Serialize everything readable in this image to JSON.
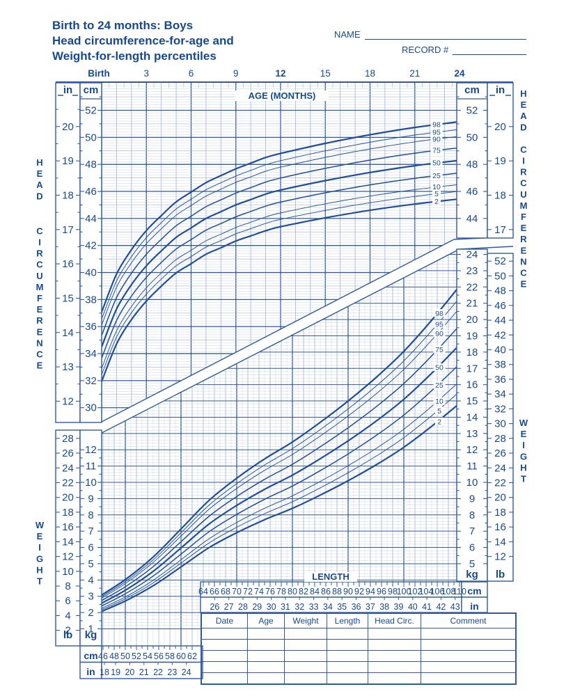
{
  "colors": {
    "ink": "#17498f",
    "curve": "#1f4e96",
    "grid_fine": "#c8d1e3",
    "grid_mid": "#9db0d0",
    "grid_mid2": "#a9b8d4",
    "grid_major": "#2f5a9e"
  },
  "header": {
    "title_lines": [
      "Birth to 24 months: Boys",
      "Head circumference-for-age and",
      "Weight-for-length percentiles"
    ],
    "name_label": "NAME",
    "record_label": "RECORD #"
  },
  "age_axis": {
    "title": "AGE (MONTHS)",
    "ticks": [
      {
        "label": "Birth",
        "month": 0,
        "bold": true
      },
      {
        "label": "3",
        "month": 3,
        "bold": false
      },
      {
        "label": "6",
        "month": 6,
        "bold": false
      },
      {
        "label": "9",
        "month": 9,
        "bold": false
      },
      {
        "label": "12",
        "month": 12,
        "bold": true
      },
      {
        "label": "15",
        "month": 15,
        "bold": false
      },
      {
        "label": "18",
        "month": 18,
        "bold": false
      },
      {
        "label": "21",
        "month": 21,
        "bold": false
      },
      {
        "label": "24",
        "month": 24,
        "bold": true
      }
    ]
  },
  "side_labels": {
    "left_head": "HEAD CIRCUMFERENCE",
    "right_head": "HEAD CIRCUMFERENCE",
    "left_weight": "WEIGHT",
    "right_weight": "WEIGHT"
  },
  "units": {
    "cm": "cm",
    "in": "in",
    "kg": "kg",
    "lb": "lb"
  },
  "hc_axis": {
    "left_cm_labels": [
      52,
      50,
      48,
      46,
      44,
      42,
      40,
      38,
      36,
      34,
      32,
      30
    ],
    "left_in_labels": [
      20,
      19,
      18,
      17,
      16,
      15,
      14,
      13,
      12
    ],
    "right_cm_labels": [
      52,
      50,
      48,
      46,
      44
    ],
    "right_in_labels": [
      20,
      19,
      18,
      17
    ]
  },
  "weight_axis": {
    "left_kg_labels": [
      12,
      11,
      10,
      9,
      8,
      7,
      6,
      5,
      4,
      3,
      2,
      1
    ],
    "left_lb_labels": [
      28,
      26,
      24,
      22,
      20,
      18,
      16,
      14,
      12,
      10,
      8,
      6,
      4,
      2
    ],
    "right_kg_labels": [
      24,
      23,
      22,
      21,
      20,
      19,
      18,
      17,
      16,
      15,
      14,
      13,
      12,
      11,
      10,
      9,
      8,
      7,
      6,
      5
    ],
    "right_lb_labels": [
      52,
      50,
      48,
      46,
      44,
      42,
      40,
      38,
      36,
      34,
      32,
      30,
      28,
      26,
      24,
      22,
      20,
      18,
      16,
      14,
      12
    ]
  },
  "length_axis": {
    "label": "LENGTH",
    "main_cm": [
      64,
      66,
      68,
      70,
      72,
      74,
      76,
      78,
      80,
      82,
      84,
      86,
      88,
      90,
      92,
      94,
      96,
      98,
      100,
      102,
      104,
      106,
      108,
      110
    ],
    "main_in": [
      26,
      27,
      28,
      29,
      30,
      31,
      32,
      33,
      34,
      35,
      36,
      37,
      38,
      39,
      40,
      41,
      42,
      43
    ],
    "lower_cm": [
      46,
      48,
      50,
      52,
      54,
      56,
      58,
      60,
      62
    ],
    "lower_in": [
      18,
      19,
      20,
      21,
      22,
      23,
      24
    ]
  },
  "percentile_curve_labels": [
    "98",
    "95",
    "90",
    "75",
    "50",
    "25",
    "10",
    "5",
    "2"
  ],
  "table": {
    "headers": [
      "Date",
      "Age",
      "Weight",
      "Length",
      "Head Circ.",
      "Comment"
    ],
    "rows": [
      [
        "",
        "",
        "",
        "",
        "",
        ""
      ],
      [
        "",
        "",
        "",
        "",
        "",
        ""
      ],
      [
        "",
        "",
        "",
        "",
        "",
        ""
      ],
      [
        "",
        "",
        "",
        "",
        "",
        ""
      ],
      [
        "",
        "",
        "",
        "",
        "",
        ""
      ]
    ]
  },
  "chart_data": [
    {
      "type": "line",
      "title": "Head circumference-for-age percentiles, boys, birth to 24 months",
      "xlabel": "AGE (MONTHS)",
      "ylabel": "HEAD CIRCUMFERENCE (cm)",
      "xlim": [
        0,
        24
      ],
      "ylim": [
        29.5,
        54
      ],
      "grid": true,
      "percentiles": [
        2,
        5,
        10,
        25,
        50,
        75,
        90,
        95,
        98
      ],
      "z_scores": {
        "2": -2.054,
        "5": -1.645,
        "10": -1.282,
        "25": -0.674,
        "50": 0,
        "75": 0.674,
        "90": 1.282,
        "95": 1.645,
        "98": 2.054
      },
      "x_months": [
        0,
        1,
        2,
        3,
        4,
        5,
        6,
        7,
        8,
        9,
        10,
        11,
        12,
        15,
        18,
        21,
        24
      ],
      "median_cm": [
        34.5,
        37.3,
        39.1,
        40.5,
        41.6,
        42.6,
        43.3,
        44.0,
        44.5,
        45.0,
        45.4,
        45.8,
        46.1,
        46.8,
        47.4,
        47.9,
        48.3
      ],
      "sigma_cm": [
        1.25,
        1.26,
        1.26,
        1.27,
        1.27,
        1.28,
        1.29,
        1.29,
        1.3,
        1.3,
        1.31,
        1.32,
        1.32,
        1.34,
        1.36,
        1.38,
        1.39
      ],
      "series_rule": "value(p, m) = median_cm[m] + z_scores[p] * sigma_cm[m]"
    },
    {
      "type": "line",
      "title": "Weight-for-length percentiles, boys",
      "xlabel": "LENGTH (cm)",
      "ylabel": "WEIGHT (kg)",
      "xlim": [
        45,
        110
      ],
      "ylim": [
        1,
        24
      ],
      "grid": true,
      "percentiles": [
        2,
        5,
        10,
        25,
        50,
        75,
        90,
        95,
        98
      ],
      "z_scores": {
        "2": -2.054,
        "5": -1.645,
        "10": -1.282,
        "25": -0.674,
        "50": 0,
        "75": 0.674,
        "90": 1.282,
        "95": 1.645,
        "98": 2.054
      },
      "x_length_cm": [
        45,
        50,
        55,
        60,
        65,
        70,
        75,
        80,
        85,
        90,
        95,
        100,
        105,
        110
      ],
      "median_kg": [
        2.44,
        3.37,
        4.53,
        5.97,
        7.43,
        8.58,
        9.57,
        10.44,
        11.45,
        12.55,
        13.75,
        15.1,
        16.7,
        18.45
      ],
      "cv": 0.095,
      "series_rule": "value(p, L) = median_kg[L] * (1 + z_scores[p] * cv)"
    }
  ]
}
